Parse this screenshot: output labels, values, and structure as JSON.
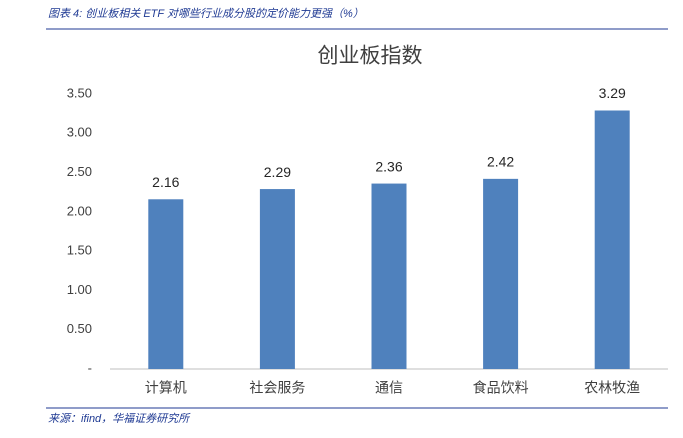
{
  "caption": "图表 4:  创业板相关 ETF 对哪些行业成分股的定价能力更强（%）",
  "source": "来源：ifind，华福证券研究所",
  "chart_data": {
    "type": "bar",
    "title": "创业板指数",
    "categories": [
      "计算机",
      "社会服务",
      "通信",
      "食品饮料",
      "农林牧渔"
    ],
    "values": [
      2.16,
      2.29,
      2.36,
      2.42,
      3.29
    ],
    "color": "#4f81bd",
    "ylim": [
      0,
      3.5
    ],
    "yticks": [
      {
        "value": 0,
        "label": "-"
      },
      {
        "value": 0.5,
        "label": "0.50"
      },
      {
        "value": 1,
        "label": "1.00"
      },
      {
        "value": 1.5,
        "label": "1.50"
      },
      {
        "value": 2,
        "label": "2.00"
      },
      {
        "value": 2.5,
        "label": "2.50"
      },
      {
        "value": 3,
        "label": "3.00"
      },
      {
        "value": 3.5,
        "label": "3.50"
      }
    ],
    "grid": false
  }
}
